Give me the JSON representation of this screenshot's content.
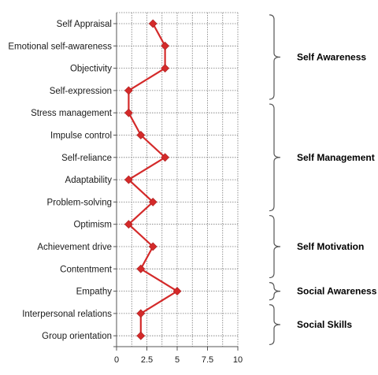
{
  "chart_data": {
    "type": "line",
    "orientation": "horizontal-values",
    "categories": [
      "Self Appraisal",
      "Emotional self-awareness",
      "Objectivity",
      "Self-expression",
      "Stress management",
      "Impulse control",
      "Self-reliance",
      "Adaptability",
      "Problem-solving",
      "Optimism",
      "Achievement drive",
      "Contentment",
      "Empathy",
      "Interpersonal relations",
      "Group orientation"
    ],
    "series": [
      {
        "values": [
          3,
          4,
          4,
          1,
          1,
          2,
          4,
          1,
          3,
          1,
          3,
          2,
          5,
          2,
          2
        ],
        "color": "#d42a2a",
        "marker": "diamond"
      }
    ],
    "x_ticks": [
      "0",
      "2.5",
      "5",
      "7.5",
      "10"
    ],
    "xlim": [
      0,
      10
    ],
    "grid": true,
    "groups": [
      {
        "label": "Self Awareness",
        "start": 0,
        "end": 3
      },
      {
        "label": "Self Management",
        "start": 4,
        "end": 8
      },
      {
        "label": "Self Motivation",
        "start": 9,
        "end": 11
      },
      {
        "label": "Social Awareness",
        "start": 12,
        "end": 12
      },
      {
        "label": "Social Skills",
        "start": 13,
        "end": 14
      }
    ]
  }
}
